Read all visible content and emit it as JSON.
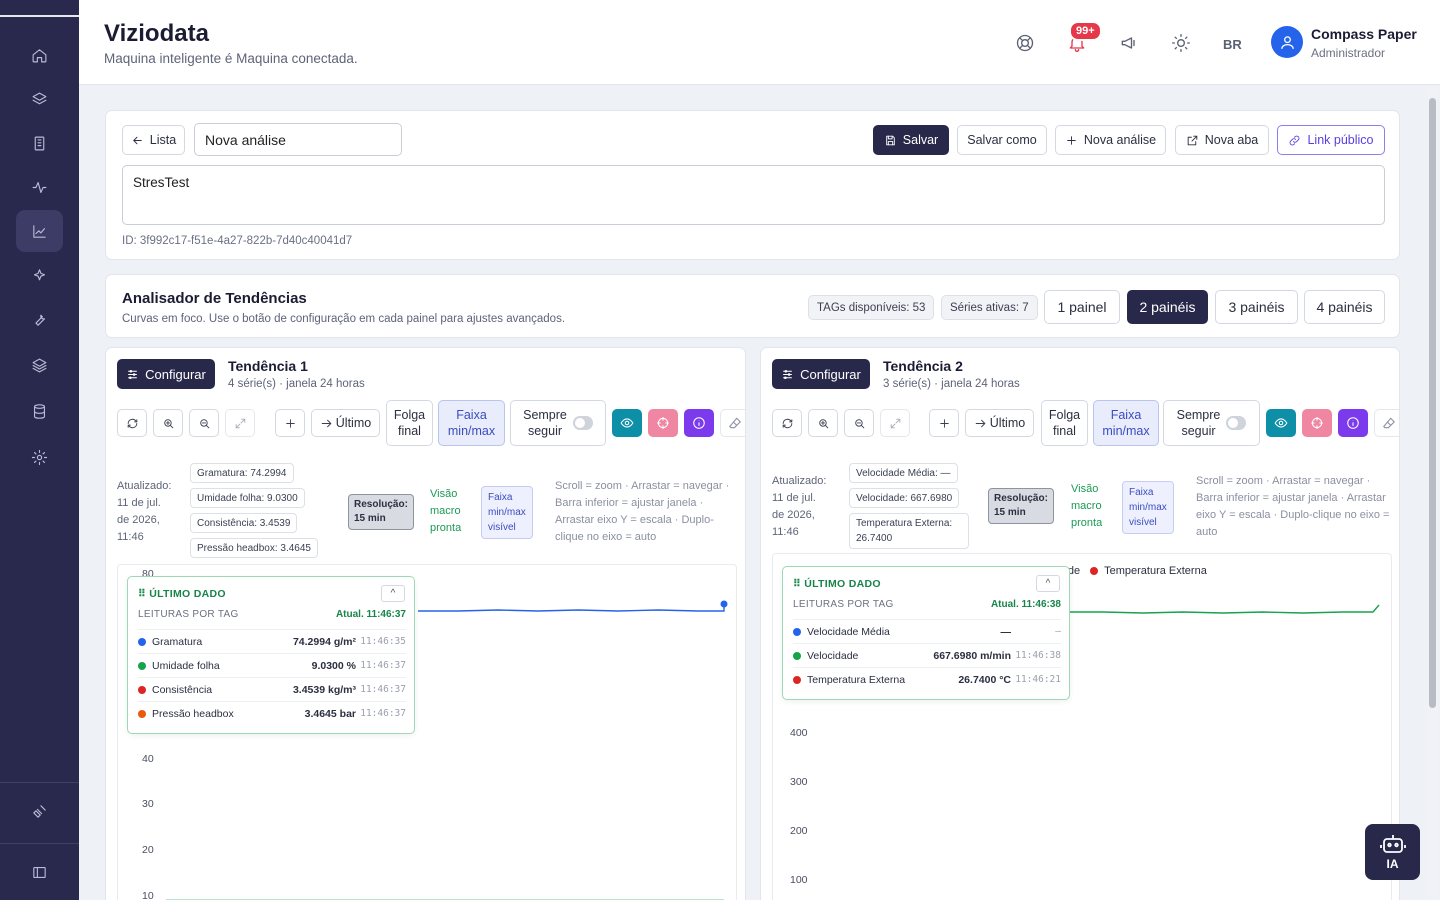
{
  "app": {
    "title": "Viziodata",
    "subtitle": "Maquina inteligente é Maquina conectada."
  },
  "header": {
    "notif_badge": "99+",
    "lang": "BR",
    "user_name": "Compass Paper",
    "user_role": "Administrador"
  },
  "sidebar": {
    "items": [
      "home",
      "layers",
      "building",
      "activity",
      "chart",
      "sparkles",
      "wrench",
      "layers-2",
      "database",
      "settings"
    ],
    "active": "chart"
  },
  "toolbar": {
    "back_label": "Lista",
    "analysis_name": "Nova análise",
    "save_label": "Salvar",
    "save_as_label": "Salvar como",
    "new_analysis_label": "Nova análise",
    "new_tab_label": "Nova aba",
    "public_link_label": "Link público"
  },
  "analysis": {
    "description": "StresTest",
    "id_text": "ID: 3f992c17-f51e-4a27-822b-7d40c40041d7"
  },
  "trend": {
    "title": "Analisador de Tendências",
    "subtitle": "Curvas em foco. Use o botão de configuração em cada painel para ajustes avançados.",
    "tags_available": "TAGs disponíveis: 53",
    "active_series": "Séries ativas: 7",
    "panel_options": [
      "1 painel",
      "2 painéis",
      "3 painéis",
      "4 painéis"
    ],
    "selected": "2 painéis"
  },
  "common": {
    "configure": "Configurar",
    "last": "Último",
    "slack_1": "Folga",
    "slack_2": "final",
    "band_1": "Faixa",
    "band_2": "min/max",
    "follow_1": "Sempre",
    "follow_2": "seguir",
    "updated_label": "Atualizado:",
    "updated_lines": [
      "11 de jul.",
      "de 2026,",
      "11:46"
    ],
    "res_label": "Resolução:",
    "res_value": "15 min",
    "macro_lines": [
      "Visão",
      "macro",
      "pronta"
    ],
    "faixa_lines": [
      "Faixa",
      "min/max",
      "visível"
    ],
    "last_data": "ÚLTIMO DADO",
    "readings": "LEITURAS POR TAG",
    "collapse": "^",
    "ia": "IA"
  },
  "panel1": {
    "title": "Tendência 1",
    "subtitle": "4 série(s) · janela 24 horas",
    "chips": [
      "Gramatura: 74.2994",
      "Umidade folha: 9.0300",
      "Consistência: 3.4539",
      "Pressão headbox: 3.4645"
    ],
    "hint": [
      "Scroll = zoom · Arrastar = navegar ·",
      "Barra inferior = ajustar janela ·",
      "Arrastar eixo Y = escala · Duplo-",
      "clique no eixo = auto"
    ],
    "y_ticks": [
      "80",
      "40",
      "30",
      "20",
      "10"
    ],
    "updated_at": "Atual. 11:46:37",
    "rows": [
      {
        "name": "Gramatura",
        "value": "74.2994 g/m²",
        "time": "11:46:35",
        "color": "#2563eb"
      },
      {
        "name": "Umidade folha",
        "value": "9.0300 %",
        "time": "11:46:37",
        "color": "#16a34a"
      },
      {
        "name": "Consistência",
        "value": "3.4539 kg/m³",
        "time": "11:46:37",
        "color": "#dc2626"
      },
      {
        "name": "Pressão headbox",
        "value": "3.4645 bar",
        "time": "11:46:37",
        "color": "#ea580c"
      }
    ]
  },
  "panel2": {
    "title": "Tendência 2",
    "subtitle": "3 série(s) · janela 24 horas",
    "chips": [
      "Velocidade Média: —",
      "Velocidade: 667.6980",
      "Temperatura Externa:",
      "26.7400"
    ],
    "hint": [
      "Scroll = zoom · Arrastar = navegar ·",
      "Barra inferior = ajustar janela · Arrastar",
      "eixo Y = escala · Duplo-clique no eixo =",
      "auto"
    ],
    "y_ticks": [
      "400",
      "300",
      "200",
      "100"
    ],
    "legend": [
      "elocidade",
      "Temperatura Externa"
    ],
    "updated_at": "Atual. 11:46:38",
    "rows": [
      {
        "name": "Velocidade Média",
        "value": "—",
        "time": "–",
        "color": "#2563eb"
      },
      {
        "name": "Velocidade",
        "value": "667.6980 m/min",
        "time": "11:46:38",
        "color": "#16a34a"
      },
      {
        "name": "Temperatura Externa",
        "value": "26.7400 °C",
        "time": "11:46:21",
        "color": "#dc2626"
      }
    ]
  }
}
